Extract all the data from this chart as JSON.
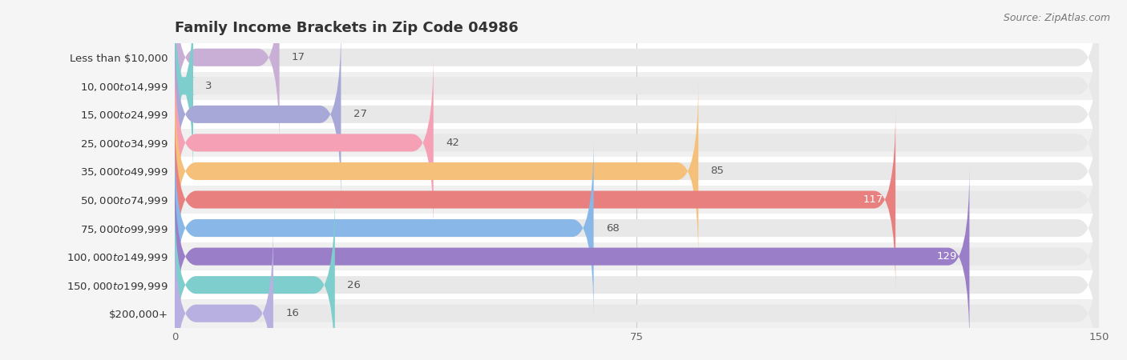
{
  "title": "Family Income Brackets in Zip Code 04986",
  "source": "Source: ZipAtlas.com",
  "categories": [
    "Less than $10,000",
    "$10,000 to $14,999",
    "$15,000 to $24,999",
    "$25,000 to $34,999",
    "$35,000 to $49,999",
    "$50,000 to $74,999",
    "$75,000 to $99,999",
    "$100,000 to $149,999",
    "$150,000 to $199,999",
    "$200,000+"
  ],
  "values": [
    17,
    3,
    27,
    42,
    85,
    117,
    68,
    129,
    26,
    16
  ],
  "colors": [
    "#c9aed6",
    "#7ecece",
    "#a8a8d8",
    "#f5a0b5",
    "#f5c07a",
    "#e88080",
    "#89b8e8",
    "#9b7ec8",
    "#7ecece",
    "#b8b0e0"
  ],
  "xlim": [
    0,
    150
  ],
  "xticks": [
    0,
    75,
    150
  ],
  "background_color": "#f5f5f5",
  "bar_bg_color": "#e8e8e8",
  "row_bg_colors": [
    "#ffffff",
    "#f0f0f0"
  ],
  "bar_height": 0.62,
  "title_fontsize": 13,
  "label_fontsize": 9.5,
  "value_fontsize": 9.5
}
